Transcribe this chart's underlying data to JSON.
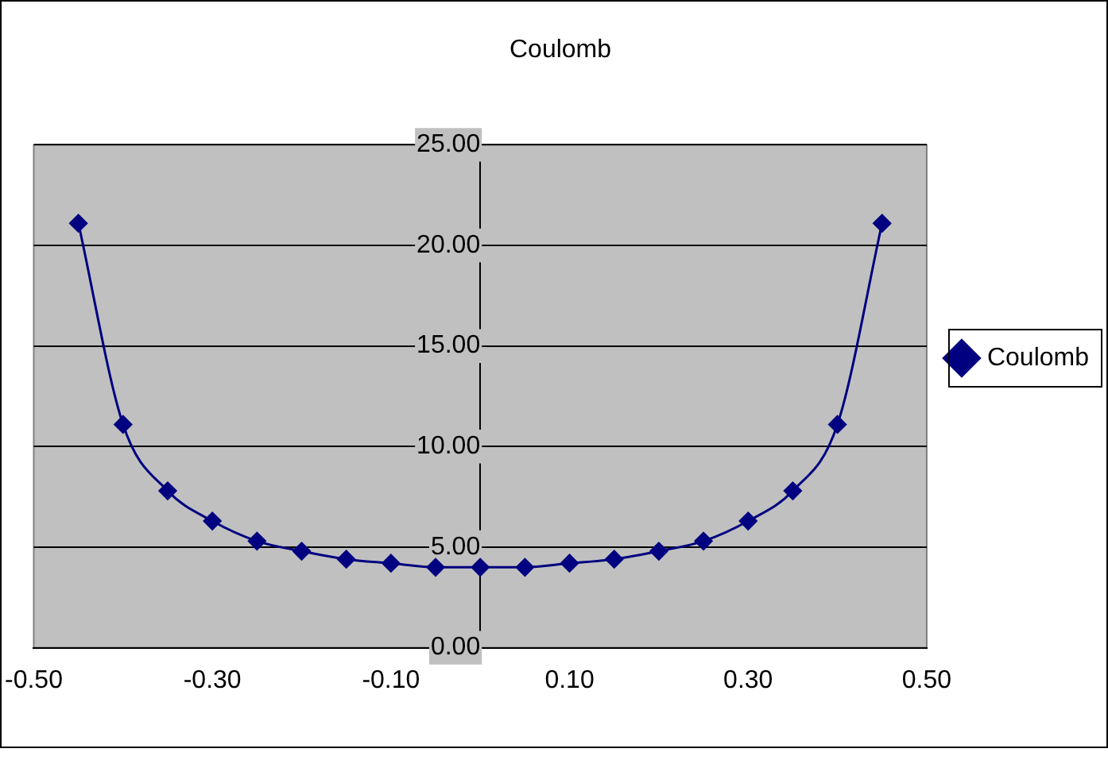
{
  "chart_data": {
    "type": "line",
    "title": "Coulomb",
    "x": [
      -0.45,
      -0.4,
      -0.35,
      -0.3,
      -0.25,
      -0.2,
      -0.15,
      -0.1,
      -0.05,
      0.0,
      0.05,
      0.1,
      0.15,
      0.2,
      0.25,
      0.3,
      0.35,
      0.4,
      0.45
    ],
    "series": [
      {
        "name": "Coulomb",
        "color": "#000080",
        "values": [
          21.1,
          11.1,
          7.8,
          6.3,
          5.3,
          4.8,
          4.4,
          4.2,
          4.0,
          4.0,
          4.0,
          4.2,
          4.4,
          4.8,
          5.3,
          6.3,
          7.8,
          11.1,
          21.1
        ]
      }
    ],
    "xlim": [
      -0.5,
      0.5
    ],
    "xticks": [
      {
        "value": -0.5,
        "label": "-0.50"
      },
      {
        "value": -0.3,
        "label": "-0.30"
      },
      {
        "value": -0.1,
        "label": "-0.10"
      },
      {
        "value": 0.1,
        "label": "0.10"
      },
      {
        "value": 0.3,
        "label": "0.30"
      },
      {
        "value": 0.5,
        "label": "0.50"
      }
    ],
    "ylim": [
      0,
      25
    ],
    "yticks": [
      {
        "value": 0,
        "label": "0.00"
      },
      {
        "value": 5,
        "label": "5.00"
      },
      {
        "value": 10,
        "label": "10.00"
      },
      {
        "value": 15,
        "label": "15.00"
      },
      {
        "value": 20,
        "label": "20.00"
      },
      {
        "value": 25,
        "label": "25.00"
      }
    ],
    "grid": "y",
    "legend": "right",
    "marker": "diamond",
    "line_style": "solid"
  }
}
